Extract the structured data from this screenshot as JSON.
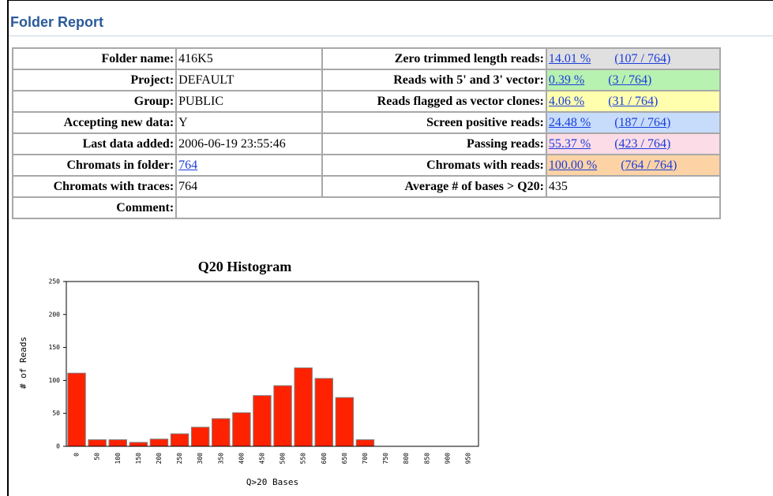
{
  "header": {
    "title": "Folder Report"
  },
  "table": {
    "left": [
      {
        "label": "Folder name:",
        "value": "416K5"
      },
      {
        "label": "Project:",
        "value": "DEFAULT"
      },
      {
        "label": "Group:",
        "value": "PUBLIC"
      },
      {
        "label": "Accepting new data:",
        "value": "Y"
      },
      {
        "label": "Last data added:",
        "value": "2006-06-19 23:55:46"
      },
      {
        "label": "Chromats in folder:",
        "value": "764",
        "link": true
      },
      {
        "label": "Chromats with traces:",
        "value": "764"
      },
      {
        "label": "Comment:"
      }
    ],
    "right": [
      {
        "label": "Zero trimmed length reads:",
        "percent": "14.01 %",
        "count": "(107 / 764)",
        "color": "#e0e0e0"
      },
      {
        "label": "Reads with 5' and 3' vector:",
        "percent": "0.39 %",
        "count": "(3 / 764)",
        "color": "#b8f2b0"
      },
      {
        "label": "Reads flagged as vector clones:",
        "percent": "4.06 %",
        "count": "(31 / 764)",
        "color": "#ffffae"
      },
      {
        "label": "Screen positive reads:",
        "percent": "24.48 %",
        "count": "(187 / 764)",
        "color": "#c6dcfa"
      },
      {
        "label": "Passing reads:",
        "percent": "55.37 %",
        "count": "(423 / 764)",
        "color": "#fcdce6"
      },
      {
        "label": "Chromats with reads:",
        "percent": "100.00 %",
        "count": "(764 / 764)",
        "color": "#fdd3a6"
      },
      {
        "label": "Average # of bases > Q20:",
        "value": "435"
      }
    ]
  },
  "chart_data": {
    "type": "bar",
    "title": "Q20 Histogram",
    "x_label": "Q>20 Bases",
    "y_label": "# of Reads",
    "categories": [
      "0",
      "50",
      "100",
      "150",
      "200",
      "250",
      "300",
      "350",
      "400",
      "450",
      "500",
      "550",
      "600",
      "650",
      "700",
      "750",
      "800",
      "850",
      "900",
      "950"
    ],
    "values": [
      111,
      10,
      10,
      6,
      11,
      19,
      29,
      42,
      51,
      77,
      92,
      119,
      103,
      74,
      10,
      0,
      0,
      0,
      0,
      0
    ],
    "color": "#ff2200",
    "ylim": [
      0,
      250
    ],
    "yticks": [
      0,
      50,
      100,
      150,
      200,
      250
    ]
  }
}
